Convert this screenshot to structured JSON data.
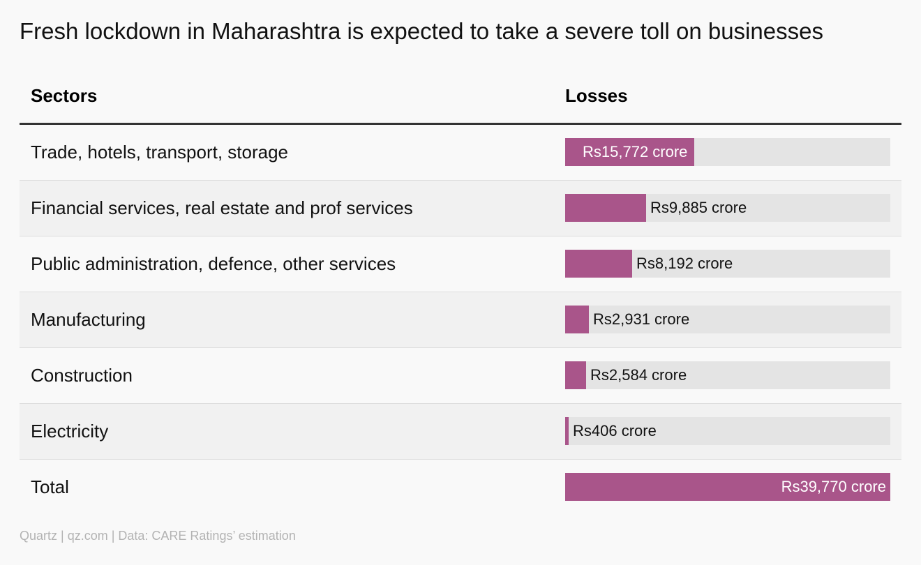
{
  "title": "Fresh lockdown in Maharashtra is expected to take a severe toll on businesses",
  "headers": {
    "sectors": "Sectors",
    "losses": "Losses"
  },
  "source": "Quartz | qz.com | Data: CARE Ratings’ estimation",
  "colors": {
    "bar": "#a9558a",
    "track": "#e4e4e4",
    "label_inside": "#ffffff",
    "label_outside": "#111111"
  },
  "chart_data": {
    "type": "bar",
    "orientation": "horizontal",
    "categories": [
      "Trade, hotels, transport, storage",
      "Financial services, real estate and prof services",
      "Public administration, defence, other services",
      "Manufacturing",
      "Construction",
      "Electricity",
      "Total"
    ],
    "values": [
      15772,
      9885,
      8192,
      2931,
      2584,
      406,
      39770
    ],
    "labels": [
      "Rs15,772 crore",
      "Rs9,885 crore",
      "Rs8,192 crore",
      "Rs2,931 crore",
      "Rs2,584 crore",
      "Rs406 crore",
      "Rs39,770 crore"
    ],
    "unit": "Rs crore",
    "xlim": [
      0,
      39770
    ]
  }
}
